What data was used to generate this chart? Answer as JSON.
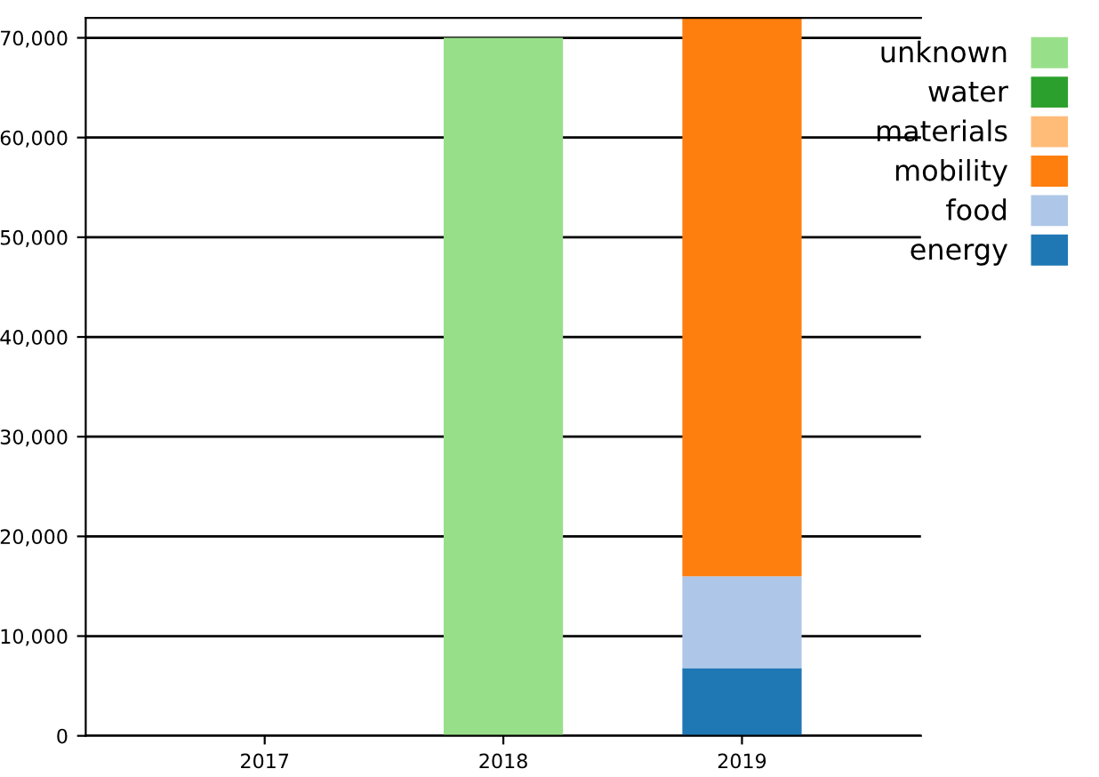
{
  "chart_data": {
    "type": "bar",
    "stacked": true,
    "categories": [
      "2017",
      "2018",
      "2019"
    ],
    "series": [
      {
        "name": "energy",
        "color": "#1f77b4",
        "values": [
          0,
          0,
          6800
        ]
      },
      {
        "name": "food",
        "color": "#aec7e8",
        "values": [
          0,
          0,
          9200
        ]
      },
      {
        "name": "mobility",
        "color": "#ff7f0e",
        "values": [
          0,
          0,
          56000
        ]
      },
      {
        "name": "materials",
        "color": "#ffbb78",
        "values": [
          0,
          0,
          0
        ]
      },
      {
        "name": "water",
        "color": "#2ca02c",
        "values": [
          0,
          0,
          0
        ]
      },
      {
        "name": "unknown",
        "color": "#98df8a",
        "values": [
          0,
          70000,
          0
        ]
      }
    ],
    "ylim": [
      0,
      72000
    ],
    "yticks": [
      {
        "value": 0,
        "label": "0"
      },
      {
        "value": 10000,
        "label": "10,000"
      },
      {
        "value": 20000,
        "label": "20,000"
      },
      {
        "value": 30000,
        "label": "30,000"
      },
      {
        "value": 40000,
        "label": "40,000"
      },
      {
        "value": 50000,
        "label": "50,000"
      },
      {
        "value": 60000,
        "label": "60,000"
      },
      {
        "value": 70000,
        "label": "70,000"
      }
    ],
    "grid": "y",
    "legend": "top right"
  }
}
